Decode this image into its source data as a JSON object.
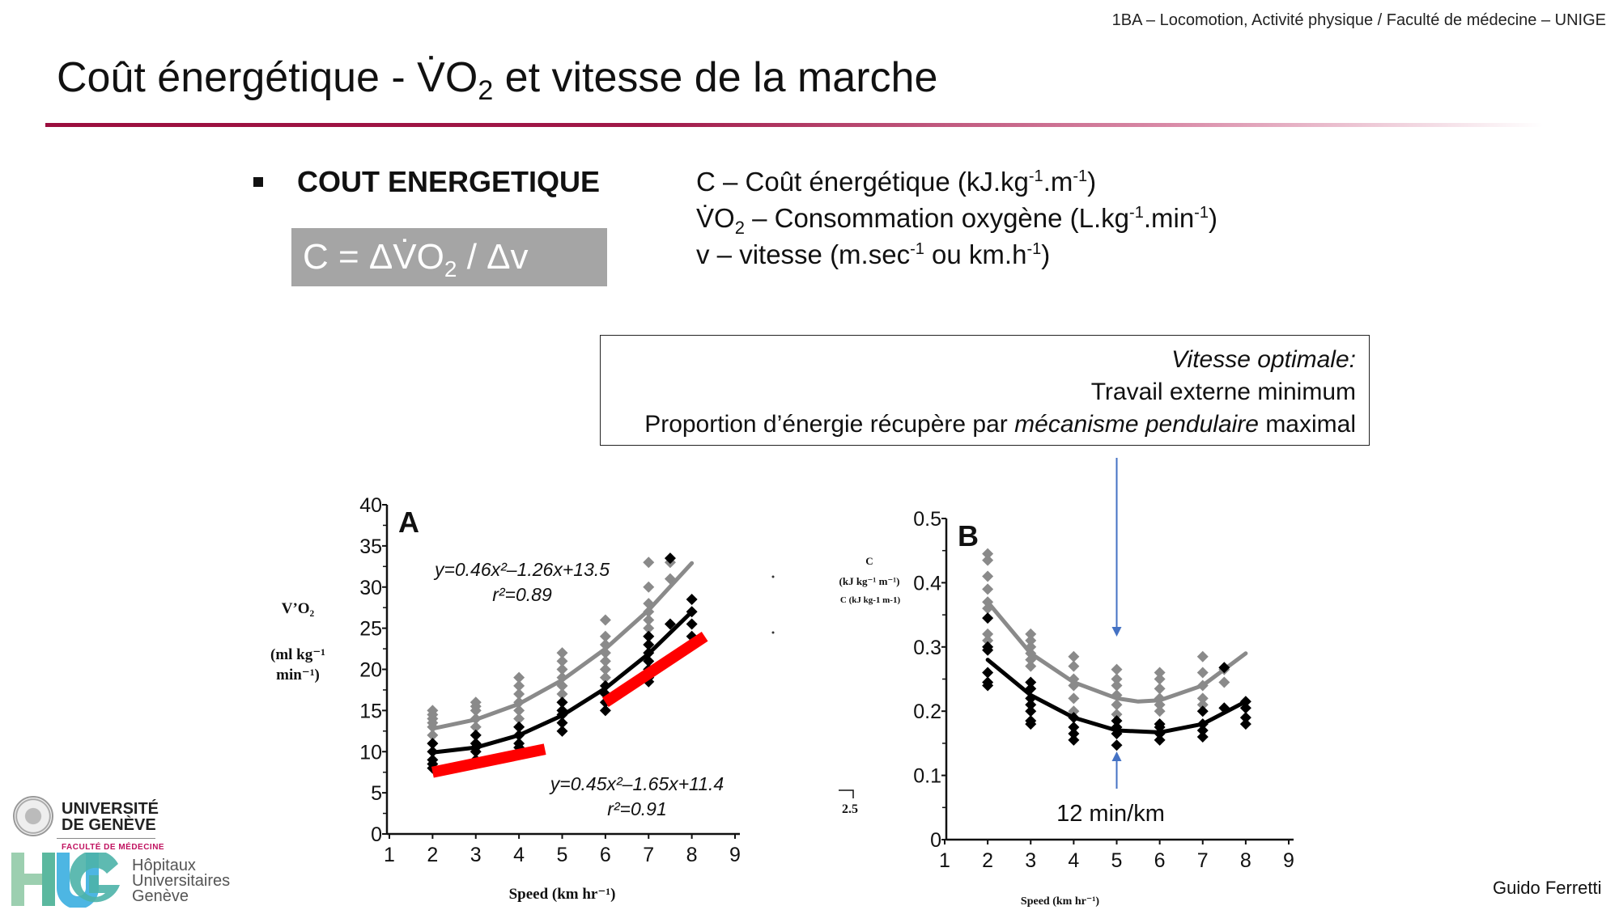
{
  "header": {
    "note": "1BA – Locomotion, Activité physique / Faculté de médecine – UNIGE"
  },
  "title": {
    "part1": "Coût énergétique - V̇O",
    "sub": "2",
    "part2": " et vitesse de la marche"
  },
  "bullet": {
    "title": "COUT ENERGETIQUE"
  },
  "formula": {
    "part1": "C = ΔV̇O",
    "sub": "2",
    "part2": " / Δv"
  },
  "definitions": [
    {
      "text": "C – Coût énergétique (kJ.kg",
      "sup1": "-1",
      "mid": ".m",
      "sup2": "-1",
      "end": ")"
    },
    {
      "pre": "V̇O",
      "sub": "2",
      "text": " – Consommation oxygène (L.kg",
      "sup1": "-1",
      "mid": ".min",
      "sup2": "-1",
      "end": ")"
    },
    {
      "text": "v – vitesse (m.sec",
      "sup1": "-1",
      "mid": " ou km.h",
      "sup2": "-1",
      "end": ")"
    }
  ],
  "optimal_box": {
    "line1": "Vitesse optimale:",
    "line2": "Travail externe minimum",
    "line3_pre": "Proportion d’énergie récupère par ",
    "line3_em": "mécanisme pendulaire",
    "line3_post": " maximal"
  },
  "annotation": {
    "pace": "12 min/km",
    "arrow_color": "#4472c4",
    "arrow_x": 5
  },
  "colors": {
    "accent": "#9b0e3e",
    "gray_series": "#8a8a8a",
    "black_series": "#000000",
    "red_line": "#ff0000",
    "formula_bg": "#a5a5a5"
  },
  "chart_data": [
    {
      "type": "scatter",
      "panel_label": "A",
      "ylabel": "V’O2 (ml kg-1 min-1)",
      "ylabel_lines": [
        "V’O₂",
        "(ml kg⁻¹",
        "min⁻¹)"
      ],
      "xlabel": "Speed  (km hr⁻¹)",
      "xlim": [
        1,
        9
      ],
      "ylim": [
        0,
        40
      ],
      "xticks": [
        "1",
        "2",
        "3",
        "4",
        "5",
        "6",
        "7",
        "8",
        "9"
      ],
      "yticks": [
        "0",
        "5",
        "10",
        "15",
        "20",
        "25",
        "30",
        "35",
        "40"
      ],
      "series": [
        {
          "color": "#8a8a8a",
          "equation": "y=0.46x²–1.26x+13.5",
          "r2": "r²=0.89",
          "fit": {
            "x": [
              2,
              3,
              4,
              5,
              6,
              7,
              8
            ],
            "y": [
              12.8,
              13.9,
              15.8,
              18.7,
              22.5,
              27.2,
              32.9
            ]
          },
          "points": {
            "x": [
              2,
              2,
              2,
              2,
              2,
              2,
              2,
              3,
              3,
              3,
              3,
              3,
              3,
              4,
              4,
              4,
              4,
              4,
              4,
              4,
              5,
              5,
              5,
              5,
              5,
              5,
              5,
              5,
              6,
              6,
              6,
              6,
              6,
              6,
              6,
              7,
              7,
              7,
              7,
              7,
              7,
              7,
              7.5,
              7.5
            ],
            "y": [
              11,
              12,
              13,
              13.5,
              14,
              14.5,
              15,
              12,
              13,
              14,
              15,
              15.5,
              16,
              13,
              14,
              15,
              16,
              17,
              18,
              19,
              15,
              16,
              17,
              18,
              19,
              20,
              21,
              22,
              19,
              20,
              21,
              22,
              23,
              24,
              26,
              24,
              25,
              26,
              27,
              28,
              30,
              33,
              31,
              33
            ]
          }
        },
        {
          "color": "#000000",
          "equation": "y=0.45x²–1.65x+11.4",
          "r2": "r²=0.91",
          "fit": {
            "x": [
              2,
              3,
              4,
              5,
              6,
              7,
              8
            ],
            "y": [
              9.9,
              10.5,
              12.0,
              14.4,
              17.7,
              21.9,
              27.0
            ]
          },
          "points": {
            "x": [
              2,
              2,
              2,
              2,
              2,
              3,
              3,
              3,
              3,
              3,
              4,
              4,
              4,
              4,
              5,
              5,
              5,
              5,
              5,
              6,
              6,
              6,
              6,
              7,
              7,
              7,
              7,
              7,
              7,
              7,
              7.5,
              7.5,
              8,
              8,
              8,
              8
            ],
            "y": [
              8,
              8.5,
              9,
              10,
              11,
              9,
              10,
              10.5,
              11,
              12,
              10.5,
              11,
              12,
              13,
              12.5,
              13.5,
              14.5,
              15,
              16,
              15,
              16,
              17,
              18,
              18.5,
              19,
              20,
              21,
              22,
              23,
              24,
              25.5,
              33.5,
              24,
              25.5,
              27,
              28.5
            ]
          }
        }
      ],
      "red_lines": [
        {
          "x": [
            2,
            4.6
          ],
          "y": [
            7.5,
            10.3
          ]
        },
        {
          "x": [
            6,
            8.3
          ],
          "y": [
            16,
            24
          ]
        }
      ]
    },
    {
      "type": "scatter",
      "panel_label": "B",
      "ylabel": "C (kJ kg-1 m-1)",
      "ylabel_lines": [
        "C",
        "(kJ kg⁻¹ m⁻¹)"
      ],
      "stray_label": "2.5",
      "xlabel": "Speed  (km hr⁻¹)",
      "xlim": [
        1,
        9
      ],
      "ylim": [
        0,
        0.5
      ],
      "xticks": [
        "1",
        "2",
        "3",
        "4",
        "5",
        "6",
        "7",
        "8",
        "9"
      ],
      "yticks": [
        "0",
        "0.1",
        "0.2",
        "0.3",
        "0.4",
        "0.5"
      ],
      "series": [
        {
          "color": "#8a8a8a",
          "fit": {
            "x": [
              2,
              3,
              4,
              5,
              5.5,
              6,
              7,
              8
            ],
            "y": [
              0.37,
              0.29,
              0.245,
              0.22,
              0.215,
              0.217,
              0.24,
              0.29
            ]
          },
          "points": {
            "x": [
              2,
              2,
              2,
              2,
              2,
              2,
              2,
              2,
              3,
              3,
              3,
              3,
              3,
              3,
              4,
              4,
              4,
              4,
              4,
              4,
              5,
              5,
              5,
              5,
              5,
              5,
              6,
              6,
              6,
              6,
              6,
              6,
              7,
              7,
              7,
              7,
              7,
              7.5,
              7.5
            ],
            "y": [
              0.31,
              0.32,
              0.36,
              0.37,
              0.39,
              0.41,
              0.435,
              0.445,
              0.27,
              0.28,
              0.29,
              0.3,
              0.31,
              0.32,
              0.2,
              0.22,
              0.24,
              0.25,
              0.27,
              0.285,
              0.195,
              0.21,
              0.225,
              0.24,
              0.25,
              0.265,
              0.2,
              0.21,
              0.22,
              0.235,
              0.25,
              0.26,
              0.21,
              0.22,
              0.24,
              0.26,
              0.285,
              0.245,
              0.265
            ]
          }
        },
        {
          "color": "#000000",
          "fit": {
            "x": [
              2,
              3,
              4,
              5,
              6,
              7,
              8
            ],
            "y": [
              0.28,
              0.225,
              0.19,
              0.17,
              0.167,
              0.18,
              0.215
            ]
          },
          "points": {
            "x": [
              2,
              2,
              2,
              2,
              2,
              2,
              3,
              3,
              3,
              3,
              3,
              3,
              3,
              4,
              4,
              4,
              4,
              5,
              5,
              5,
              5,
              6,
              6,
              6,
              6,
              7,
              7,
              7,
              7,
              7.5,
              7.5,
              8,
              8,
              8,
              8
            ],
            "y": [
              0.24,
              0.245,
              0.26,
              0.295,
              0.3,
              0.345,
              0.18,
              0.185,
              0.2,
              0.21,
              0.22,
              0.235,
              0.245,
              0.155,
              0.165,
              0.175,
              0.19,
              0.147,
              0.165,
              0.175,
              0.185,
              0.155,
              0.165,
              0.175,
              0.18,
              0.16,
              0.17,
              0.18,
              0.2,
              0.205,
              0.268,
              0.18,
              0.19,
              0.205,
              0.215
            ]
          }
        }
      ]
    }
  ],
  "logos": {
    "unige": {
      "line1": "UNIVERSITÉ",
      "line2": "DE GENÈVE",
      "faculty": "FACULTÉ DE MÉDECINE"
    },
    "hug": {
      "mark": "HUG",
      "line1": "Hôpitaux",
      "line2": "Universitaires",
      "line3": "Genève"
    }
  },
  "author": "Guido Ferretti"
}
